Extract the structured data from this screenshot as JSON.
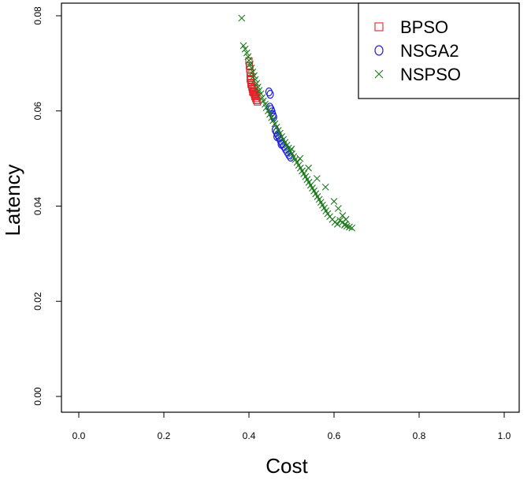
{
  "chart_data": {
    "type": "scatter",
    "xlabel": "Cost",
    "ylabel": "Latency",
    "xlim": [
      0,
      1
    ],
    "ylim": [
      0,
      0.08
    ],
    "x_ticks": [
      "0.0",
      "0.2",
      "0.4",
      "0.6",
      "0.8",
      "1.0"
    ],
    "y_ticks": [
      "0.00",
      "0.02",
      "0.04",
      "0.06",
      "0.08"
    ],
    "legend_position": "top-right",
    "series": [
      {
        "name": "BPSO",
        "marker": "square",
        "color": "#e8202a",
        "points": [
          [
            0.4,
            0.0705
          ],
          [
            0.401,
            0.0695
          ],
          [
            0.402,
            0.0688
          ],
          [
            0.403,
            0.068
          ],
          [
            0.404,
            0.0672
          ],
          [
            0.404,
            0.0665
          ],
          [
            0.405,
            0.066
          ],
          [
            0.406,
            0.0655
          ],
          [
            0.407,
            0.065
          ],
          [
            0.408,
            0.0646
          ],
          [
            0.41,
            0.0642
          ],
          [
            0.411,
            0.0638
          ],
          [
            0.413,
            0.0634
          ],
          [
            0.414,
            0.063
          ],
          [
            0.416,
            0.0626
          ],
          [
            0.418,
            0.0622
          ],
          [
            0.42,
            0.0619
          ],
          [
            0.412,
            0.0648
          ],
          [
            0.409,
            0.064
          ],
          [
            0.415,
            0.0636
          ],
          [
            0.417,
            0.0632
          ],
          [
            0.403,
            0.0668
          ],
          [
            0.405,
            0.0656
          ]
        ]
      },
      {
        "name": "NSGA2",
        "marker": "circle",
        "color": "#1f1fe0",
        "points": [
          [
            0.447,
            0.064
          ],
          [
            0.45,
            0.0635
          ],
          [
            0.449,
            0.0608
          ],
          [
            0.452,
            0.0603
          ],
          [
            0.454,
            0.0598
          ],
          [
            0.456,
            0.0592
          ],
          [
            0.458,
            0.0587
          ],
          [
            0.462,
            0.056
          ],
          [
            0.465,
            0.0555
          ],
          [
            0.468,
            0.055
          ],
          [
            0.471,
            0.0544
          ],
          [
            0.474,
            0.0538
          ],
          [
            0.478,
            0.0532
          ],
          [
            0.482,
            0.0526
          ],
          [
            0.486,
            0.052
          ],
          [
            0.49,
            0.0514
          ],
          [
            0.494,
            0.0508
          ],
          [
            0.498,
            0.0503
          ],
          [
            0.466,
            0.0546
          ],
          [
            0.476,
            0.053
          ]
        ]
      },
      {
        "name": "NSPSO",
        "marker": "cross",
        "color": "#1a7a1a",
        "points": [
          [
            0.383,
            0.0795
          ],
          [
            0.387,
            0.0737
          ],
          [
            0.391,
            0.073
          ],
          [
            0.395,
            0.0722
          ],
          [
            0.398,
            0.0714
          ],
          [
            0.4,
            0.0706
          ],
          [
            0.403,
            0.0698
          ],
          [
            0.406,
            0.069
          ],
          [
            0.409,
            0.0682
          ],
          [
            0.412,
            0.0674
          ],
          [
            0.415,
            0.0666
          ],
          [
            0.418,
            0.0658
          ],
          [
            0.421,
            0.065
          ],
          [
            0.424,
            0.0643
          ],
          [
            0.428,
            0.0636
          ],
          [
            0.431,
            0.0628
          ],
          [
            0.434,
            0.0621
          ],
          [
            0.438,
            0.0614
          ],
          [
            0.441,
            0.0607
          ],
          [
            0.445,
            0.06
          ],
          [
            0.449,
            0.0593
          ],
          [
            0.453,
            0.0586
          ],
          [
            0.457,
            0.058
          ],
          [
            0.461,
            0.0573
          ],
          [
            0.465,
            0.0566
          ],
          [
            0.469,
            0.0559
          ],
          [
            0.473,
            0.0553
          ],
          [
            0.477,
            0.0546
          ],
          [
            0.481,
            0.054
          ],
          [
            0.485,
            0.0534
          ],
          [
            0.489,
            0.0528
          ],
          [
            0.493,
            0.0522
          ],
          [
            0.497,
            0.0516
          ],
          [
            0.501,
            0.051
          ],
          [
            0.505,
            0.0504
          ],
          [
            0.509,
            0.0498
          ],
          [
            0.513,
            0.0492
          ],
          [
            0.517,
            0.0486
          ],
          [
            0.521,
            0.048
          ],
          [
            0.525,
            0.0474
          ],
          [
            0.529,
            0.0468
          ],
          [
            0.533,
            0.0462
          ],
          [
            0.537,
            0.0456
          ],
          [
            0.541,
            0.045
          ],
          [
            0.545,
            0.0444
          ],
          [
            0.549,
            0.0438
          ],
          [
            0.553,
            0.0432
          ],
          [
            0.557,
            0.0426
          ],
          [
            0.561,
            0.042
          ],
          [
            0.565,
            0.0414
          ],
          [
            0.569,
            0.0408
          ],
          [
            0.573,
            0.0402
          ],
          [
            0.577,
            0.0396
          ],
          [
            0.581,
            0.039
          ],
          [
            0.585,
            0.0384
          ],
          [
            0.59,
            0.0378
          ],
          [
            0.596,
            0.0372
          ],
          [
            0.602,
            0.0366
          ],
          [
            0.608,
            0.0362
          ],
          [
            0.614,
            0.037
          ],
          [
            0.62,
            0.0366
          ],
          [
            0.626,
            0.0362
          ],
          [
            0.63,
            0.0358
          ],
          [
            0.636,
            0.0356
          ],
          [
            0.642,
            0.0354
          ],
          [
            0.5,
            0.052
          ],
          [
            0.52,
            0.05
          ],
          [
            0.54,
            0.048
          ],
          [
            0.56,
            0.0458
          ],
          [
            0.58,
            0.044
          ],
          [
            0.6,
            0.041
          ],
          [
            0.61,
            0.0395
          ],
          [
            0.62,
            0.038
          ],
          [
            0.628,
            0.0372
          ],
          [
            0.625,
            0.036
          ]
        ]
      }
    ]
  }
}
